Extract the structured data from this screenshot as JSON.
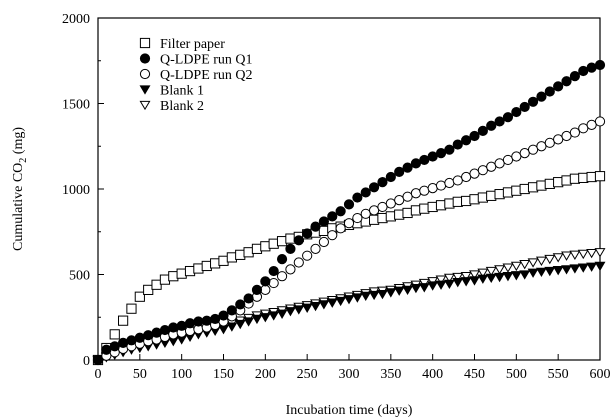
{
  "chart_data": {
    "type": "scatter",
    "title": "",
    "xlabel": "Incubation time (days)",
    "ylabel_main": "Cumulative CO",
    "ylabel_sub": "2",
    "ylabel_unit": " (mg)",
    "xlim": [
      0,
      600
    ],
    "ylim": [
      0,
      2000
    ],
    "xticks": [
      "0",
      "50",
      "100",
      "150",
      "200",
      "250",
      "300",
      "350",
      "400",
      "450",
      "500",
      "550",
      "600"
    ],
    "yticks": [
      "0",
      "500",
      "1000",
      "1500",
      "2000"
    ],
    "grid": false,
    "legend_position": "top-left",
    "series": [
      {
        "name": "Filter paper",
        "marker": "square-open",
        "x": [
          0,
          10,
          20,
          30,
          40,
          50,
          60,
          70,
          80,
          90,
          100,
          110,
          120,
          130,
          140,
          150,
          160,
          170,
          180,
          190,
          200,
          210,
          220,
          230,
          240,
          250,
          260,
          270,
          280,
          290,
          300,
          310,
          320,
          330,
          340,
          350,
          360,
          370,
          380,
          390,
          400,
          410,
          420,
          430,
          440,
          450,
          460,
          470,
          480,
          490,
          500,
          510,
          520,
          530,
          540,
          550,
          560,
          570,
          580,
          590,
          600
        ],
        "y": [
          0,
          70,
          150,
          230,
          300,
          370,
          410,
          440,
          470,
          490,
          505,
          520,
          535,
          550,
          565,
          580,
          600,
          615,
          630,
          650,
          665,
          680,
          695,
          710,
          720,
          735,
          745,
          755,
          770,
          780,
          790,
          800,
          810,
          820,
          830,
          840,
          850,
          860,
          875,
          885,
          895,
          905,
          915,
          925,
          930,
          940,
          950,
          960,
          970,
          980,
          990,
          1000,
          1010,
          1020,
          1030,
          1040,
          1050,
          1060,
          1065,
          1070,
          1075
        ]
      },
      {
        "name": "Q-LDPE run Q1",
        "marker": "circle-filled",
        "x": [
          0,
          10,
          20,
          30,
          40,
          50,
          60,
          70,
          80,
          90,
          100,
          110,
          120,
          130,
          140,
          150,
          160,
          170,
          180,
          190,
          200,
          210,
          220,
          230,
          240,
          250,
          260,
          270,
          280,
          290,
          300,
          310,
          320,
          330,
          340,
          350,
          360,
          370,
          380,
          390,
          400,
          410,
          420,
          430,
          440,
          450,
          460,
          470,
          480,
          490,
          500,
          510,
          520,
          530,
          540,
          550,
          560,
          570,
          580,
          590,
          600
        ],
        "y": [
          0,
          60,
          80,
          100,
          115,
          130,
          145,
          160,
          175,
          190,
          200,
          215,
          225,
          230,
          240,
          260,
          290,
          325,
          360,
          410,
          460,
          520,
          590,
          650,
          700,
          740,
          780,
          810,
          840,
          870,
          910,
          950,
          980,
          1010,
          1040,
          1070,
          1100,
          1125,
          1150,
          1170,
          1190,
          1210,
          1230,
          1260,
          1285,
          1310,
          1340,
          1370,
          1395,
          1420,
          1450,
          1480,
          1510,
          1540,
          1570,
          1600,
          1630,
          1660,
          1690,
          1710,
          1725
        ]
      },
      {
        "name": "Q-LDPE run Q2",
        "marker": "circle-open",
        "x": [
          0,
          10,
          20,
          30,
          40,
          50,
          60,
          70,
          80,
          90,
          100,
          110,
          120,
          130,
          140,
          150,
          160,
          170,
          180,
          190,
          200,
          210,
          220,
          230,
          240,
          250,
          260,
          270,
          280,
          290,
          300,
          310,
          320,
          330,
          340,
          350,
          360,
          370,
          380,
          390,
          400,
          410,
          420,
          430,
          440,
          450,
          460,
          470,
          480,
          490,
          500,
          510,
          520,
          530,
          540,
          550,
          560,
          570,
          580,
          590,
          600
        ],
        "y": [
          0,
          25,
          45,
          65,
          80,
          95,
          110,
          120,
          135,
          150,
          160,
          170,
          180,
          190,
          205,
          225,
          255,
          290,
          330,
          370,
          410,
          450,
          490,
          530,
          570,
          610,
          650,
          690,
          730,
          770,
          800,
          830,
          855,
          875,
          895,
          915,
          935,
          955,
          975,
          990,
          1005,
          1020,
          1035,
          1050,
          1070,
          1090,
          1110,
          1130,
          1150,
          1170,
          1190,
          1210,
          1230,
          1250,
          1270,
          1290,
          1310,
          1330,
          1355,
          1375,
          1395
        ]
      },
      {
        "name": "Blank 1",
        "marker": "triangle-down-filled",
        "x": [
          0,
          10,
          20,
          30,
          40,
          50,
          60,
          70,
          80,
          90,
          100,
          110,
          120,
          130,
          140,
          150,
          160,
          170,
          180,
          190,
          200,
          210,
          220,
          230,
          240,
          250,
          260,
          270,
          280,
          290,
          300,
          310,
          320,
          330,
          340,
          350,
          360,
          370,
          380,
          390,
          400,
          410,
          420,
          430,
          440,
          450,
          460,
          470,
          480,
          490,
          500,
          510,
          520,
          530,
          540,
          550,
          560,
          570,
          580,
          590,
          600
        ],
        "y": [
          0,
          15,
          30,
          45,
          60,
          70,
          80,
          90,
          100,
          110,
          120,
          135,
          150,
          160,
          170,
          180,
          195,
          210,
          225,
          240,
          250,
          260,
          270,
          285,
          295,
          305,
          315,
          325,
          335,
          345,
          355,
          365,
          375,
          380,
          385,
          395,
          405,
          410,
          420,
          425,
          435,
          440,
          445,
          455,
          460,
          465,
          475,
          480,
          485,
          490,
          495,
          500,
          510,
          515,
          520,
          525,
          530,
          535,
          540,
          545,
          550
        ]
      },
      {
        "name": "Blank 2",
        "marker": "triangle-down-open",
        "x": [
          0,
          10,
          20,
          30,
          40,
          50,
          60,
          70,
          80,
          90,
          100,
          110,
          120,
          130,
          140,
          150,
          160,
          170,
          180,
          190,
          200,
          210,
          220,
          230,
          240,
          250,
          260,
          270,
          280,
          290,
          300,
          310,
          320,
          330,
          340,
          350,
          360,
          370,
          380,
          390,
          400,
          410,
          420,
          430,
          440,
          450,
          460,
          470,
          480,
          490,
          500,
          510,
          520,
          530,
          540,
          550,
          560,
          570,
          580,
          590,
          600
        ],
        "y": [
          0,
          20,
          40,
          55,
          65,
          75,
          85,
          95,
          105,
          120,
          135,
          150,
          160,
          170,
          185,
          200,
          215,
          230,
          245,
          260,
          270,
          280,
          290,
          300,
          310,
          320,
          330,
          340,
          350,
          360,
          370,
          380,
          390,
          400,
          405,
          410,
          420,
          430,
          440,
          450,
          460,
          470,
          480,
          485,
          490,
          500,
          510,
          520,
          530,
          540,
          550,
          560,
          570,
          580,
          590,
          600,
          610,
          615,
          620,
          625,
          630
        ]
      }
    ]
  }
}
